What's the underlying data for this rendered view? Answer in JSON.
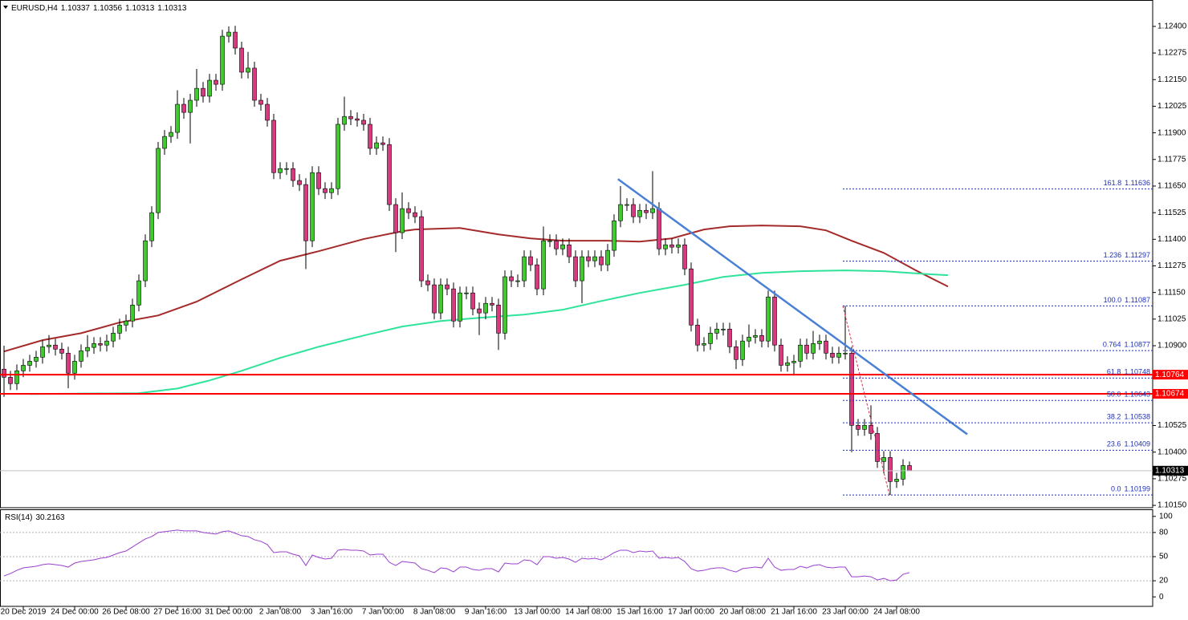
{
  "chart_data": [
    {
      "type": "candlestick",
      "header": "EURUSD,H4",
      "header_values": [
        1.10337,
        1.10356,
        1.10313,
        1.10313
      ],
      "categories": [
        null,
        null,
        null,
        "20 Dec 2019",
        null,
        null,
        null,
        null,
        null,
        null,
        null,
        "24 Dec 00:00",
        null,
        null,
        null,
        null,
        null,
        null,
        null,
        "26 Dec 08:00",
        null,
        null,
        null,
        null,
        null,
        null,
        null,
        "27 Dec 16:00",
        null,
        null,
        null,
        null,
        null,
        null,
        null,
        "31 Dec 00:00",
        null,
        null,
        null,
        null,
        null,
        null,
        null,
        "2 Jan 08:00",
        null,
        null,
        null,
        null,
        null,
        null,
        null,
        "3 Jan 16:00",
        null,
        null,
        null,
        null,
        null,
        null,
        null,
        "7 Jan 00:00",
        null,
        null,
        null,
        null,
        null,
        null,
        null,
        "8 Jan 08:00",
        null,
        null,
        null,
        null,
        null,
        null,
        null,
        "9 Jan 16:00",
        null,
        null,
        null,
        null,
        null,
        null,
        null,
        "13 Jan 00:00",
        null,
        null,
        null,
        null,
        null,
        null,
        null,
        "14 Jan 08:00",
        null,
        null,
        null,
        null,
        null,
        null,
        null,
        "15 Jan 16:00",
        null,
        null,
        null,
        null,
        null,
        null,
        null,
        "17 Jan 00:00",
        null,
        null,
        null,
        null,
        null,
        null,
        null,
        "20 Jan 08:00",
        null,
        null,
        null,
        null,
        null,
        null,
        null,
        "21 Jan 16:00",
        null,
        null,
        null,
        null,
        null,
        null,
        null,
        "23 Jan 00:00",
        null,
        null,
        null,
        null,
        null,
        null,
        null,
        "24 Jan 08:00",
        null,
        null
      ],
      "open": [
        1.1079,
        1.10752,
        1.10722,
        1.10782,
        1.10808,
        1.10827,
        1.10846,
        1.10895,
        1.10903,
        1.10884,
        1.10865,
        1.10771,
        1.10827,
        1.10876,
        1.10892,
        1.1091,
        1.10903,
        1.10922,
        1.10959,
        1.10997,
        1.11016,
        1.11091,
        1.11205,
        1.11393,
        1.11525,
        1.11827,
        1.11883,
        1.11902,
        1.12034,
        1.11996,
        1.12053,
        1.12109,
        1.12072,
        1.12147,
        1.12128,
        1.12354,
        1.12373,
        1.12298,
        1.12185,
        1.12204,
        1.12053,
        1.12034,
        1.11959,
        1.11713,
        1.11732,
        1.11732,
        1.11676,
        1.11657,
        1.11393,
        1.11713,
        1.11638,
        1.11619,
        1.11638,
        1.1194,
        1.11977,
        1.11966,
        1.11959,
        1.1194,
        1.11827,
        1.11853,
        1.11845,
        1.11563,
        1.11431,
        1.11544,
        1.11525,
        1.11506,
        1.11205,
        1.11186,
        1.11054,
        1.11186,
        1.11167,
        1.11016,
        1.11148,
        1.11148,
        1.11073,
        1.11054,
        1.11099,
        1.11091,
        1.10959,
        1.11224,
        1.11205,
        1.11205,
        1.11318,
        1.1128,
        1.11167,
        1.11393,
        1.11393,
        1.11355,
        1.11374,
        1.11318,
        1.11205,
        1.11318,
        1.11299,
        1.11318,
        1.1128,
        1.11348,
        1.11487,
        1.11563,
        1.11563,
        1.11506,
        1.11536,
        1.11525,
        1.11544,
        1.11355,
        1.11374,
        1.11363,
        1.11374,
        1.11261,
        1.10997,
        1.10903,
        1.1091,
        1.10959,
        1.10978,
        1.10978,
        1.10895,
        1.10835,
        1.10922,
        1.1094,
        1.10948,
        1.10922,
        1.11129,
        1.10903,
        1.10808,
        1.1082,
        1.10827,
        1.10903,
        1.10865,
        1.1091,
        1.10922,
        1.10865,
        1.10846,
        1.10865,
        1.10865,
        1.10526,
        1.10507,
        1.10526,
        1.10488,
        1.10356,
        1.10375,
        1.10262,
        1.10273,
        1.10337
      ],
      "high": [
        1.109,
        1.10782,
        1.10812,
        1.10838,
        1.10857,
        1.10876,
        1.10925,
        1.1095,
        1.10933,
        1.10914,
        1.10895,
        1.10857,
        1.10906,
        1.1095,
        1.1094,
        1.1094,
        1.10952,
        1.10989,
        1.11027,
        1.11046,
        1.11121,
        1.11235,
        1.11423,
        1.11555,
        1.11857,
        1.11913,
        1.11932,
        1.121,
        1.12064,
        1.12083,
        1.122,
        1.12139,
        1.12177,
        1.12177,
        1.12384,
        1.124,
        1.12403,
        1.12328,
        1.1228,
        1.12234,
        1.12083,
        1.12064,
        1.11989,
        1.11762,
        1.11762,
        1.11762,
        1.11706,
        1.11687,
        1.11743,
        1.11743,
        1.11668,
        1.11668,
        1.1197,
        1.1207,
        1.12007,
        1.11996,
        1.11989,
        1.1197,
        1.11883,
        1.11883,
        1.11875,
        1.11593,
        1.1162,
        1.11574,
        1.11555,
        1.11536,
        1.11235,
        1.11216,
        1.11216,
        1.11216,
        1.11197,
        1.11178,
        1.11178,
        1.11178,
        1.11103,
        1.11129,
        1.11129,
        1.11121,
        1.11254,
        1.11254,
        1.11235,
        1.11348,
        1.11348,
        1.1131,
        1.1146,
        1.11423,
        1.11423,
        1.11404,
        1.11404,
        1.11348,
        1.11348,
        1.11348,
        1.11348,
        1.11348,
        1.11378,
        1.11517,
        1.1165,
        1.11593,
        1.11593,
        1.11566,
        1.11566,
        1.1172,
        1.11574,
        1.11404,
        1.11404,
        1.11404,
        1.11404,
        1.11291,
        1.11027,
        1.1094,
        1.10989,
        1.11008,
        1.11008,
        1.11008,
        1.10925,
        1.10952,
        1.11,
        1.10978,
        1.10978,
        1.11159,
        1.11159,
        1.10933,
        1.1085,
        1.10857,
        1.10933,
        1.10933,
        1.1097,
        1.10952,
        1.10952,
        1.10895,
        1.10895,
        1.11087,
        1.10895,
        1.10556,
        1.10556,
        1.1062,
        1.10518,
        1.10405,
        1.10405,
        1.10303,
        1.10367,
        1.10356
      ],
      "low": [
        1.1066,
        1.10692,
        1.10692,
        1.10752,
        1.10778,
        1.10797,
        1.10816,
        1.10865,
        1.10854,
        1.10835,
        1.107,
        1.10741,
        1.10797,
        1.10846,
        1.10862,
        1.10873,
        1.10873,
        1.10892,
        1.10929,
        1.10967,
        1.10986,
        1.11061,
        1.11175,
        1.11363,
        1.11495,
        1.11797,
        1.11853,
        1.11872,
        1.11966,
        1.1185,
        1.12023,
        1.12042,
        1.12042,
        1.12098,
        1.12098,
        1.12324,
        1.12268,
        1.12155,
        1.12155,
        1.12023,
        1.12004,
        1.11929,
        1.11683,
        1.11683,
        1.11702,
        1.11646,
        1.11627,
        1.1126,
        1.11363,
        1.11608,
        1.11589,
        1.11589,
        1.11608,
        1.1191,
        1.11936,
        1.11929,
        1.1191,
        1.11797,
        1.11797,
        1.11815,
        1.11533,
        1.1134,
        1.11401,
        1.11495,
        1.11476,
        1.11175,
        1.11156,
        1.11024,
        1.11024,
        1.11137,
        1.10986,
        1.10986,
        1.11118,
        1.11043,
        1.1095,
        1.11024,
        1.11061,
        1.1088,
        1.10929,
        1.11175,
        1.11175,
        1.11175,
        1.1125,
        1.11137,
        1.11137,
        1.11363,
        1.11325,
        1.11325,
        1.11288,
        1.11175,
        1.111,
        1.11269,
        1.11269,
        1.1125,
        1.1125,
        1.11318,
        1.11457,
        1.11533,
        1.11476,
        1.11476,
        1.11495,
        1.11495,
        1.11325,
        1.11325,
        1.11333,
        1.11333,
        1.11231,
        1.10967,
        1.10873,
        1.10873,
        1.1088,
        1.10929,
        1.10948,
        1.10865,
        1.1079,
        1.10805,
        1.10892,
        1.1091,
        1.10892,
        1.10892,
        1.10873,
        1.10778,
        1.10778,
        1.1076,
        1.10797,
        1.10835,
        1.10835,
        1.1088,
        1.10835,
        1.10816,
        1.10816,
        1.10835,
        1.104,
        1.10477,
        1.10477,
        1.10458,
        1.10326,
        1.103,
        1.10199,
        1.10232,
        1.10243,
        1.10313
      ],
      "close": [
        1.10752,
        1.10722,
        1.10782,
        1.10808,
        1.10827,
        1.10846,
        1.10895,
        1.10903,
        1.10884,
        1.10865,
        1.10771,
        1.10827,
        1.10876,
        1.10892,
        1.1091,
        1.10903,
        1.10922,
        1.10959,
        1.10997,
        1.11016,
        1.11091,
        1.11205,
        1.11393,
        1.11525,
        1.11827,
        1.11883,
        1.11902,
        1.12034,
        1.11996,
        1.12053,
        1.12109,
        1.12072,
        1.12147,
        1.12128,
        1.12354,
        1.12373,
        1.12298,
        1.12185,
        1.12204,
        1.12053,
        1.12034,
        1.11959,
        1.11713,
        1.11732,
        1.11732,
        1.11676,
        1.11657,
        1.11393,
        1.11713,
        1.11638,
        1.11619,
        1.11638,
        1.1194,
        1.11977,
        1.11966,
        1.11959,
        1.1194,
        1.11827,
        1.11853,
        1.11845,
        1.11563,
        1.11431,
        1.11544,
        1.11525,
        1.11506,
        1.11205,
        1.11186,
        1.11054,
        1.11186,
        1.11167,
        1.11016,
        1.11148,
        1.11148,
        1.11073,
        1.11054,
        1.11099,
        1.11091,
        1.10959,
        1.11224,
        1.11205,
        1.11205,
        1.11318,
        1.1128,
        1.11167,
        1.11393,
        1.11393,
        1.11355,
        1.11374,
        1.11318,
        1.11205,
        1.11318,
        1.11299,
        1.11318,
        1.1128,
        1.11348,
        1.11487,
        1.11563,
        1.11563,
        1.11506,
        1.11536,
        1.11525,
        1.11544,
        1.11355,
        1.11374,
        1.11363,
        1.11374,
        1.11261,
        1.10997,
        1.10903,
        1.1091,
        1.10959,
        1.10978,
        1.10978,
        1.10895,
        1.10835,
        1.10922,
        1.1094,
        1.10948,
        1.10922,
        1.11129,
        1.10903,
        1.10808,
        1.1082,
        1.10827,
        1.10903,
        1.10865,
        1.1091,
        1.10922,
        1.10865,
        1.10846,
        1.10865,
        1.10865,
        1.10526,
        1.10507,
        1.10526,
        1.10488,
        1.10356,
        1.10375,
        1.10262,
        1.10273,
        1.10337,
        1.10313
      ],
      "up_color": "#3fc92f",
      "down_color": "#d93a7f",
      "ylim": [
        1.10139,
        1.12524
      ],
      "yticks": [
        {
          "value": 1.124,
          "label": "1.12400"
        },
        {
          "value": 1.12275,
          "label": "1.12275"
        },
        {
          "value": 1.1215,
          "label": "1.12150"
        },
        {
          "value": 1.12025,
          "label": "1.12025"
        },
        {
          "value": 1.119,
          "label": "1.11900"
        },
        {
          "value": 1.11775,
          "label": "1.11775"
        },
        {
          "value": 1.1165,
          "label": "1.11650"
        },
        {
          "value": 1.11525,
          "label": "1.11525"
        },
        {
          "value": 1.114,
          "label": "1.11400"
        },
        {
          "value": 1.11275,
          "label": "1.11275"
        },
        {
          "value": 1.1115,
          "label": "1.11150"
        },
        {
          "value": 1.11025,
          "label": "1.11025"
        },
        {
          "value": 1.109,
          "label": "1.10900"
        },
        {
          "value": 1.10525,
          "label": "1.10525"
        },
        {
          "value": 1.104,
          "label": "1.10400"
        },
        {
          "value": 1.10275,
          "label": "1.10275"
        },
        {
          "value": 1.1015,
          "label": "1.10150"
        }
      ],
      "series": [
        {
          "color": "#a52a2a",
          "x": [
            0,
            6,
            12,
            18,
            24,
            30,
            37,
            43,
            49,
            56,
            62,
            64,
            71,
            77,
            82,
            87,
            94,
            99,
            104,
            109,
            113,
            118,
            124,
            128,
            132,
            137,
            142,
            147
          ],
          "values": [
            1.10873,
            1.10926,
            1.10959,
            1.11009,
            1.11042,
            1.11107,
            1.11212,
            1.11299,
            1.11344,
            1.11401,
            1.11438,
            1.11446,
            1.11453,
            1.11423,
            1.11404,
            1.11393,
            1.11393,
            1.11389,
            1.11404,
            1.11446,
            1.11461,
            1.11465,
            1.11461,
            1.11442,
            1.11393,
            1.11336,
            1.11254,
            1.11178
          ]
        },
        {
          "color": "#2ee39a",
          "x": [
            4,
            21,
            27,
            32,
            37,
            43,
            49,
            56,
            62,
            68,
            74,
            81,
            87,
            93,
            99,
            106,
            112,
            118,
            124,
            131,
            137,
            143,
            147
          ],
          "values": [
            1.10673,
            1.10677,
            1.10699,
            1.10737,
            1.10782,
            1.10843,
            1.10895,
            1.10948,
            1.1099,
            1.11016,
            1.11031,
            1.11046,
            1.11069,
            1.1111,
            1.11148,
            1.11186,
            1.11223,
            1.11242,
            1.1125,
            1.11254,
            1.1125,
            1.11238,
            1.11231
          ]
        }
      ],
      "horizontal_lines": [
        {
          "value": 1.10764,
          "color": "#ff0000"
        },
        {
          "value": 1.10674,
          "color": "#ff0000"
        }
      ],
      "price_line_color": "#c0c0c0",
      "trendline": {
        "color": "#4a80d6",
        "x": [
          95.6,
          150
        ],
        "values": [
          1.11683,
          1.10484
        ]
      },
      "fibonacci": {
        "color": "#1e2fb8",
        "diagonal_color": "#d9304a",
        "levels": [
          {
            "level": "161.8",
            "value": 1.11636
          },
          {
            "level": "1.236",
            "value": 1.11297
          },
          {
            "level": "100.0",
            "value": 1.11087
          },
          {
            "level": "0.764",
            "value": 1.10877
          },
          {
            "level": "61.8",
            "value": 1.10748
          },
          {
            "level": "50.0",
            "value": 1.10643
          },
          {
            "level": "38.2",
            "value": 1.10538
          },
          {
            "level": "23.6",
            "value": 1.10409
          },
          {
            "level": "0.0",
            "value": 1.10199
          }
        ]
      }
    },
    {
      "type": "line",
      "title": "RSI(14)",
      "color": "#9b3fcf",
      "values": [
        26,
        29,
        33,
        36,
        37,
        38,
        40,
        41,
        40,
        39,
        37,
        42,
        44,
        45,
        46,
        48,
        49,
        52,
        55,
        57,
        62,
        67,
        72,
        75,
        80,
        81,
        82,
        83,
        82,
        82,
        82,
        80,
        79,
        78,
        81,
        82,
        79,
        76,
        75,
        71,
        69,
        65,
        55,
        56,
        56,
        53,
        51,
        39,
        52,
        49,
        47,
        48,
        58,
        59,
        58,
        58,
        57,
        52,
        53,
        53,
        43,
        39,
        44,
        43,
        42,
        35,
        33,
        30,
        36,
        35,
        31,
        37,
        37,
        34,
        33,
        35,
        35,
        31,
        42,
        41,
        41,
        46,
        45,
        40,
        50,
        50,
        48,
        49,
        47,
        43,
        48,
        47,
        48,
        46,
        50,
        55,
        58,
        58,
        55,
        57,
        56,
        57,
        48,
        49,
        48,
        49,
        44,
        35,
        32,
        33,
        35,
        36,
        36,
        33,
        31,
        35,
        36,
        37,
        36,
        48,
        37,
        33,
        34,
        34,
        38,
        36,
        39,
        40,
        37,
        36,
        37,
        37,
        25,
        25,
        26,
        25,
        21,
        23,
        20,
        21,
        28,
        30.2163
      ],
      "ylim": [
        -11.8,
        108.8
      ],
      "yticks": [
        100,
        80,
        50,
        20,
        0
      ],
      "levels": [
        80,
        50,
        20
      ],
      "level_color": "#b0b0b0"
    }
  ]
}
